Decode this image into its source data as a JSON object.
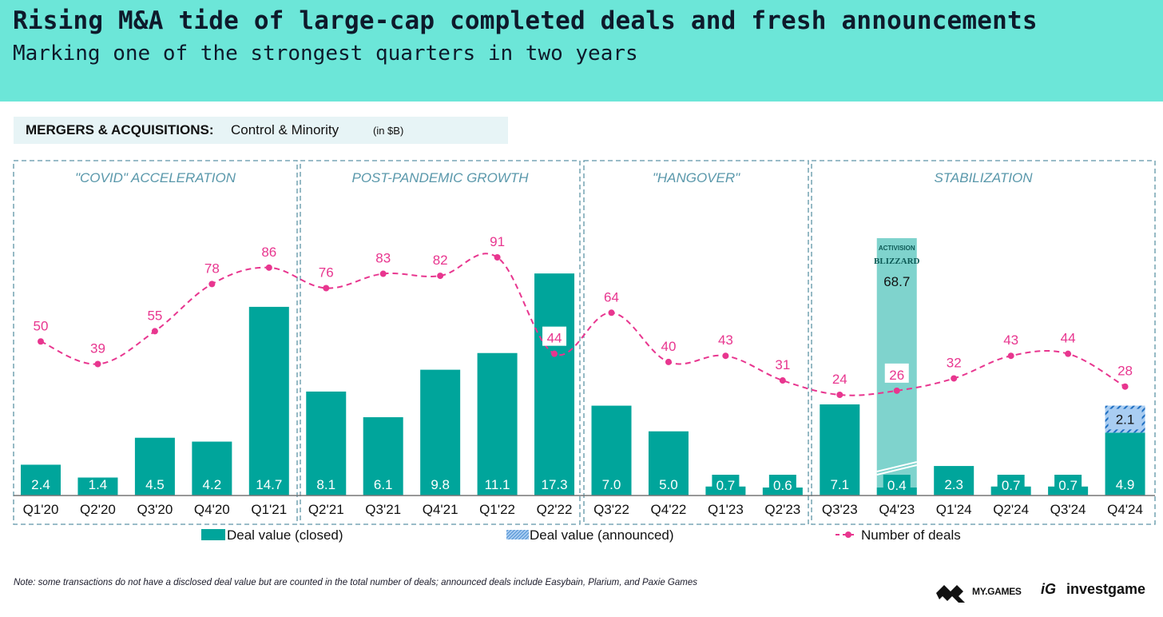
{
  "header": {
    "title": "Rising M&A tide of large-cap completed deals and fresh announcements",
    "subtitle": "Marking one of the strongest quarters in two years"
  },
  "subheader": {
    "bold": "MERGERS & ACQUISITIONS:",
    "normal": "Control & Minority",
    "unit": "(in $B)"
  },
  "colors": {
    "header_bg": "#6ce6d8",
    "bar_closed": "#00a59b",
    "bar_highlight": "#7fd3cd",
    "bar_announced": "#a9cdf2",
    "announced_stripe": "#1e6fc2",
    "line": "#e8368f",
    "section_border": "#5e95a6",
    "section_label": "#5a98ab"
  },
  "chart_data": {
    "type": "bar",
    "title": "MERGERS & ACQUISITIONS: Control & Minority (in $B)",
    "xlabel": "",
    "ylabel": "",
    "categories": [
      "Q1'20",
      "Q2'20",
      "Q3'20",
      "Q4'20",
      "Q1'21",
      "Q2'21",
      "Q3'21",
      "Q4'21",
      "Q1'22",
      "Q2'22",
      "Q3'22",
      "Q4'22",
      "Q1'23",
      "Q2'23",
      "Q3'23",
      "Q4'23",
      "Q1'24",
      "Q2'24",
      "Q3'24",
      "Q4'24"
    ],
    "series": [
      {
        "name": "Deal value (closed)",
        "type": "bar",
        "values": [
          2.4,
          1.4,
          4.5,
          4.2,
          14.7,
          8.1,
          6.1,
          9.8,
          11.1,
          17.3,
          7.0,
          5.0,
          0.7,
          0.6,
          7.1,
          0.4,
          2.3,
          0.7,
          0.7,
          4.9
        ],
        "labels": [
          "2.4",
          "1.4",
          "4.5",
          "4.2",
          "14.7",
          "8.1",
          "6.1",
          "9.8",
          "11.1",
          "17.3",
          "7.0",
          "5.0",
          "0.7",
          "0.6",
          "7.1",
          "0.4",
          "2.3",
          "0.7",
          "0.7",
          "4.9"
        ]
      },
      {
        "name": "Deal value (announced)",
        "type": "bar-stacked",
        "values": [
          null,
          null,
          null,
          null,
          null,
          null,
          null,
          null,
          null,
          null,
          null,
          null,
          null,
          null,
          null,
          null,
          null,
          null,
          null,
          2.1
        ],
        "labels": [
          "",
          "",
          "",
          "",
          "",
          "",
          "",
          "",
          "",
          "",
          "",
          "",
          "",
          "",
          "",
          "",
          "",
          "",
          "",
          "2.1"
        ]
      },
      {
        "name": "Number of deals",
        "type": "line",
        "values": [
          50,
          39,
          55,
          78,
          86,
          76,
          83,
          82,
          91,
          44,
          64,
          40,
          43,
          31,
          24,
          26,
          32,
          43,
          44,
          28
        ],
        "labels": [
          "50",
          "39",
          "55",
          "78",
          "86",
          "76",
          "83",
          "82",
          "91",
          "44",
          "64",
          "40",
          "43",
          "31",
          "24",
          "26",
          "32",
          "43",
          "44",
          "28"
        ]
      }
    ],
    "highlight": {
      "category": "Q4'23",
      "company": "Activision Blizzard",
      "logo_line1": "ACTIVISION",
      "logo_line2": "BLIZZARD",
      "value": 68.7,
      "label": "68.7",
      "axis_break": true
    },
    "boxed_line_labels": [
      "Q2'22",
      "Q4'23"
    ],
    "sections": [
      {
        "label": "\"COVID\" ACCELERATION",
        "range": [
          "Q1'20",
          "Q1'21"
        ]
      },
      {
        "label": "POST-PANDEMIC GROWTH",
        "range": [
          "Q2'21",
          "Q2'22"
        ]
      },
      {
        "label": "\"HANGOVER\"",
        "range": [
          "Q3'22",
          "Q2'23"
        ]
      },
      {
        "label": "STABILIZATION",
        "range": [
          "Q3'23",
          "Q4'24"
        ]
      }
    ],
    "legend": {
      "position": "bottom",
      "items": [
        "Deal value (closed)",
        "Deal value (announced)",
        "Number of deals"
      ]
    },
    "grid": false
  },
  "footer": {
    "note": "Note: some transactions do not have a disclosed deal value but are counted in the total number of deals; announced deals include Easybain, Plarium, and Paxie Games",
    "logo_mygames": "MY.GAMES",
    "logo_ig_mark": "iG",
    "logo_investgame": "investgame"
  }
}
